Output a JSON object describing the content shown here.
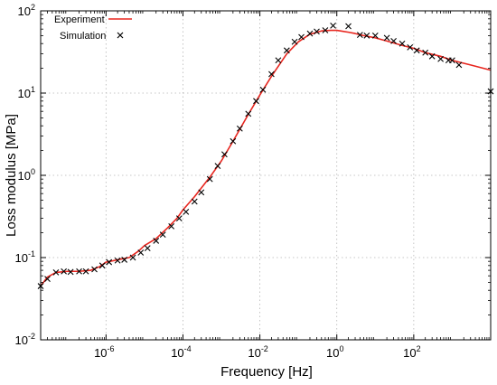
{
  "chart_data": {
    "type": "line",
    "title": "",
    "xlabel": "Frequency [Hz]",
    "ylabel": "Loss modulus [MPa]",
    "xscale": "log",
    "yscale": "log",
    "xlim": [
      2e-08,
      10000
    ],
    "ylim": [
      0.01,
      100
    ],
    "grid": true,
    "legend_position": "top-left",
    "x_ticks": [
      {
        "value": 1e-06,
        "base": "10",
        "exp": "-6"
      },
      {
        "value": 0.0001,
        "base": "10",
        "exp": "-4"
      },
      {
        "value": 0.01,
        "base": "10",
        "exp": "-2"
      },
      {
        "value": 1,
        "base": "10",
        "exp": "0"
      },
      {
        "value": 100,
        "base": "10",
        "exp": "2"
      }
    ],
    "y_ticks": [
      {
        "value": 0.01,
        "base": "10",
        "exp": "-2"
      },
      {
        "value": 0.1,
        "base": "10",
        "exp": "-1"
      },
      {
        "value": 1,
        "base": "10",
        "exp": "0"
      },
      {
        "value": 10,
        "base": "10",
        "exp": "1"
      },
      {
        "value": 100,
        "base": "10",
        "exp": "2"
      }
    ],
    "series": [
      {
        "name": "Experiment",
        "style": "line",
        "color": "#e8261f",
        "x": [
          2e-08,
          3e-08,
          5e-08,
          1e-07,
          2e-07,
          4e-07,
          7e-07,
          1e-06,
          2e-06,
          4e-06,
          7e-06,
          1e-05,
          2e-05,
          4e-05,
          7e-05,
          0.0001,
          0.0002,
          0.0005,
          0.001,
          0.002,
          0.005,
          0.01,
          0.02,
          0.05,
          0.1,
          0.2,
          0.4,
          0.7,
          1,
          2,
          3,
          5,
          10,
          20,
          50,
          100,
          200,
          500,
          1000,
          3000,
          10000
        ],
        "y": [
          0.045,
          0.058,
          0.066,
          0.068,
          0.068,
          0.07,
          0.078,
          0.088,
          0.094,
          0.1,
          0.12,
          0.14,
          0.17,
          0.23,
          0.3,
          0.38,
          0.55,
          0.95,
          1.5,
          2.6,
          5.5,
          9.5,
          16,
          30,
          42,
          52,
          57,
          58,
          58,
          55,
          53,
          50,
          47,
          43,
          38,
          35,
          31,
          28,
          25,
          22,
          19
        ]
      },
      {
        "name": "Simulation",
        "style": "marker",
        "marker": "x",
        "color": "#000000",
        "x": [
          2e-08,
          3e-08,
          5e-08,
          8e-08,
          1.2e-07,
          2e-07,
          3e-07,
          5e-07,
          8e-07,
          1.2e-06,
          2e-06,
          3e-06,
          5e-06,
          8e-06,
          1.2e-05,
          2e-05,
          3e-05,
          5e-05,
          8e-05,
          0.00012,
          0.0002,
          0.0003,
          0.0005,
          0.0008,
          0.0012,
          0.002,
          0.003,
          0.005,
          0.008,
          0.012,
          0.02,
          0.03,
          0.05,
          0.08,
          0.12,
          0.2,
          0.3,
          0.5,
          0.8,
          2,
          4,
          6,
          10,
          20,
          30,
          50,
          80,
          120,
          200,
          300,
          500,
          800,
          1000,
          1500,
          10000
        ],
        "y": [
          0.045,
          0.055,
          0.066,
          0.068,
          0.067,
          0.068,
          0.068,
          0.072,
          0.08,
          0.088,
          0.092,
          0.094,
          0.1,
          0.115,
          0.13,
          0.16,
          0.19,
          0.24,
          0.3,
          0.36,
          0.48,
          0.62,
          0.9,
          1.3,
          1.8,
          2.6,
          3.7,
          5.6,
          8,
          11,
          17,
          25,
          33,
          42,
          48,
          53,
          56,
          58,
          66,
          65,
          51,
          50,
          50,
          47,
          43,
          40,
          36,
          33,
          31,
          28,
          26,
          25,
          25,
          22,
          10.5
        ]
      }
    ]
  }
}
